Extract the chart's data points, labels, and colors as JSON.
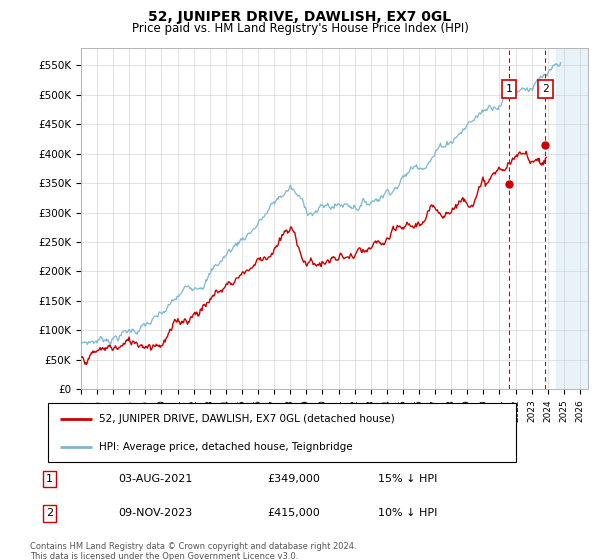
{
  "title": "52, JUNIPER DRIVE, DAWLISH, EX7 0GL",
  "subtitle": "Price paid vs. HM Land Registry's House Price Index (HPI)",
  "ylabel_ticks": [
    "£0",
    "£50K",
    "£100K",
    "£150K",
    "£200K",
    "£250K",
    "£300K",
    "£350K",
    "£400K",
    "£450K",
    "£500K",
    "£550K"
  ],
  "ytick_values": [
    0,
    50000,
    100000,
    150000,
    200000,
    250000,
    300000,
    350000,
    400000,
    450000,
    500000,
    550000
  ],
  "ylim": [
    0,
    580000
  ],
  "xlim_start": 1995.0,
  "xlim_end": 2026.5,
  "hpi_color": "#7bb8d4",
  "price_color": "#cc0000",
  "marker1_date": 2021.58,
  "marker1_price": 349000,
  "marker1_label": "1",
  "marker2_date": 2023.85,
  "marker2_price": 415000,
  "marker2_label": "2",
  "shade_start": 2024.5,
  "legend_line1": "52, JUNIPER DRIVE, DAWLISH, EX7 0GL (detached house)",
  "legend_line2": "HPI: Average price, detached house, Teignbridge",
  "table_row1_num": "1",
  "table_row1_date": "03-AUG-2021",
  "table_row1_price": "£349,000",
  "table_row1_hpi": "15% ↓ HPI",
  "table_row2_num": "2",
  "table_row2_date": "09-NOV-2023",
  "table_row2_price": "£415,000",
  "table_row2_hpi": "10% ↓ HPI",
  "footnote": "Contains HM Land Registry data © Crown copyright and database right 2024.\nThis data is licensed under the Open Government Licence v3.0.",
  "background_color": "#ffffff",
  "grid_color": "#cccccc"
}
